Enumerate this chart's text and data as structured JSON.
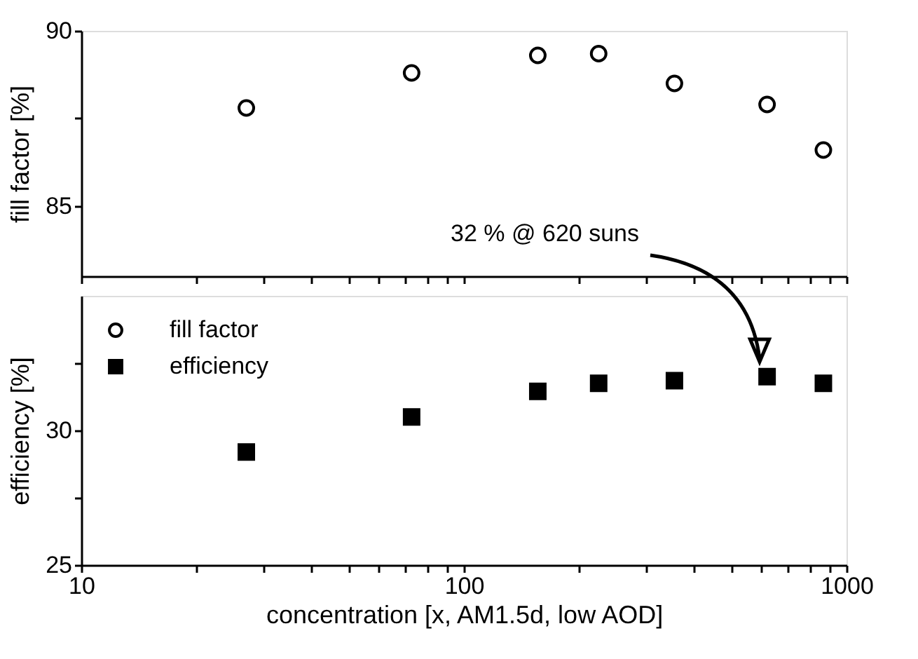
{
  "chart_data": [
    {
      "type": "scatter",
      "ylabel": "fill factor [%]",
      "log": "x",
      "tick_labels": "y",
      "legend": false,
      "x": [
        27,
        73,
        156,
        225,
        355,
        620,
        870
      ],
      "xlim": [
        10,
        1000
      ],
      "xticks": [
        10,
        {
          "value": 20,
          "label": null
        },
        {
          "value": 30,
          "label": null
        },
        {
          "value": 40,
          "label": null
        },
        {
          "value": 50,
          "label": null
        },
        {
          "value": 60,
          "label": null
        },
        {
          "value": 70,
          "label": null
        },
        {
          "value": 80,
          "label": null
        },
        {
          "value": 90,
          "label": null
        },
        100,
        {
          "value": 200,
          "label": null
        },
        {
          "value": 300,
          "label": null
        },
        {
          "value": 400,
          "label": null
        },
        {
          "value": 500,
          "label": null
        },
        {
          "value": 600,
          "label": null
        },
        {
          "value": 700,
          "label": null
        },
        {
          "value": 800,
          "label": null
        },
        {
          "value": 900,
          "label": null
        },
        1000
      ],
      "ylim": [
        83,
        90
      ],
      "yticks": [
        85,
        {
          "value": 87.5,
          "label": null
        },
        90
      ],
      "series": [
        {
          "name": "fill factor",
          "color": "#000000",
          "marker": "circle",
          "values": [
            87.8,
            88.8,
            89.3,
            89.35,
            88.5,
            87.9,
            86.6
          ]
        }
      ]
    },
    {
      "type": "scatter",
      "xlabel": "concentration [x, AM1.5d, low AOD]",
      "ylabel": "efficiency [%]",
      "log": "x",
      "legend": "top left",
      "x": [
        27,
        73,
        156,
        225,
        355,
        620,
        870
      ],
      "xlim": [
        10,
        1000
      ],
      "xticks": [
        10,
        {
          "value": 20,
          "label": null
        },
        {
          "value": 30,
          "label": null
        },
        {
          "value": 40,
          "label": null
        },
        {
          "value": 50,
          "label": null
        },
        {
          "value": 60,
          "label": null
        },
        {
          "value": 70,
          "label": null
        },
        {
          "value": 80,
          "label": null
        },
        {
          "value": 90,
          "label": null
        },
        100,
        {
          "value": 200,
          "label": null
        },
        {
          "value": 300,
          "label": null
        },
        {
          "value": 400,
          "label": null
        },
        {
          "value": 500,
          "label": null
        },
        {
          "value": 600,
          "label": null
        },
        {
          "value": 700,
          "label": null
        },
        {
          "value": 800,
          "label": null
        },
        {
          "value": 900,
          "label": null
        },
        1000
      ],
      "ylim": [
        25,
        35
      ],
      "yticks": [
        25,
        {
          "value": 27.5,
          "label": null
        },
        30,
        {
          "value": 32.5,
          "label": null
        }
      ],
      "series": [
        {
          "name": "efficiency",
          "color": "#000000",
          "marker": "square",
          "values": [
            29.2,
            30.5,
            31.45,
            31.75,
            31.85,
            32.0,
            31.75
          ]
        }
      ],
      "annotations": [
        "32 % @ 620 suns"
      ]
    }
  ]
}
